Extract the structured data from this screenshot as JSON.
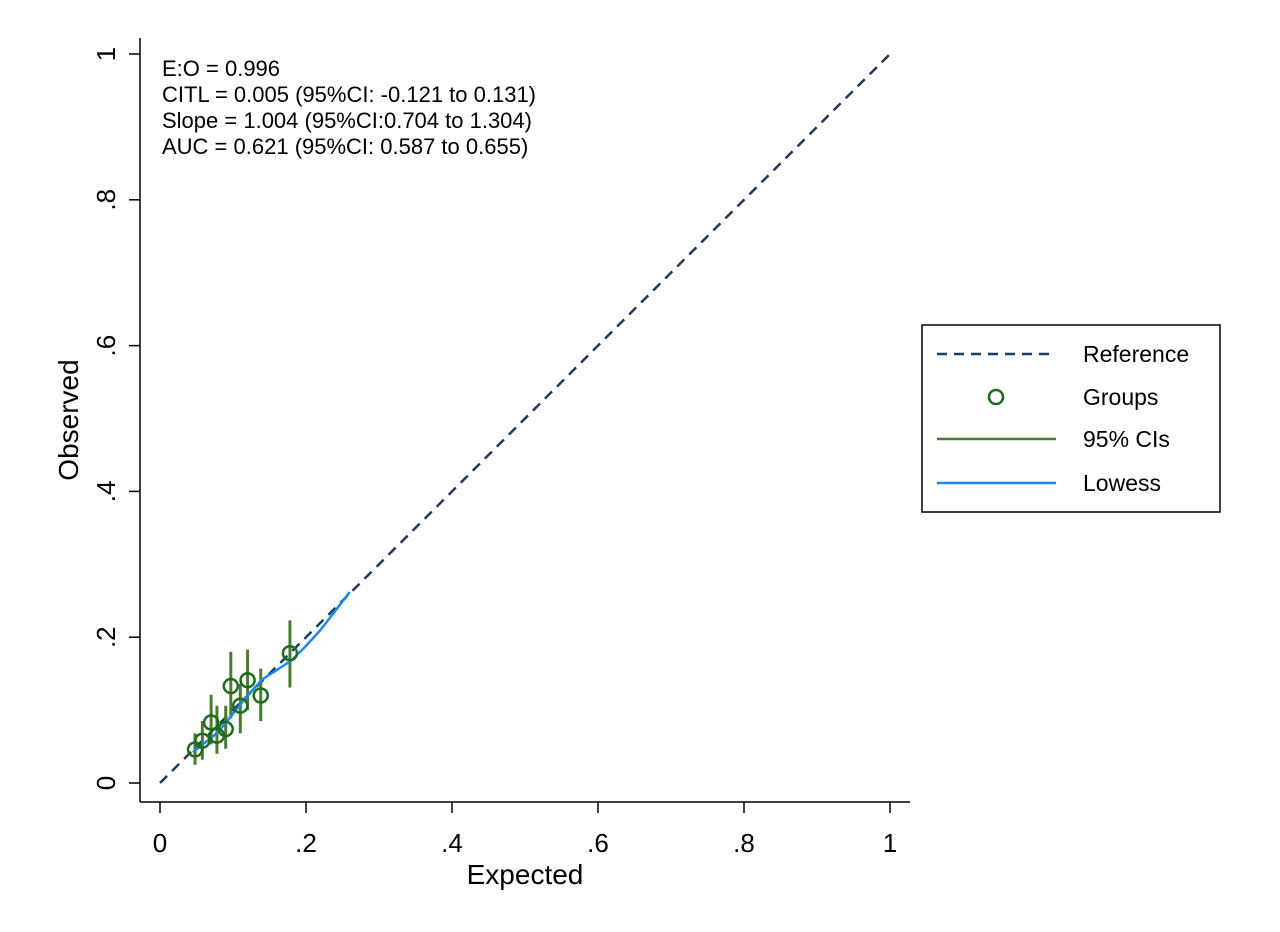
{
  "chart_data": {
    "type": "scatter",
    "xlabel": "Expected",
    "ylabel": "Observed",
    "xlim": [
      0,
      1
    ],
    "ylim": [
      0,
      1
    ],
    "x_ticks": [
      {
        "value": 0,
        "label": "0"
      },
      {
        "value": 0.2,
        "label": ".2"
      },
      {
        "value": 0.4,
        "label": ".4"
      },
      {
        "value": 0.6,
        "label": ".6"
      },
      {
        "value": 0.8,
        "label": ".8"
      },
      {
        "value": 1,
        "label": "1"
      }
    ],
    "y_ticks": [
      {
        "value": 0,
        "label": "0"
      },
      {
        "value": 0.2,
        "label": ".2"
      },
      {
        "value": 0.4,
        "label": ".4"
      },
      {
        "value": 0.6,
        "label": ".6"
      },
      {
        "value": 0.8,
        "label": ".8"
      },
      {
        "value": 1,
        "label": "1"
      }
    ],
    "grid": false,
    "legend_position": "right",
    "annotations": [
      "E:O = 0.996",
      "CITL = 0.005 (95%CI: -0.121 to 0.131)",
      "Slope = 1.004 (95%CI:0.704 to 1.304)",
      "AUC = 0.621 (95%CI: 0.587 to 0.655)"
    ],
    "series": [
      {
        "name": "Reference",
        "kind": "line",
        "style": "dashed",
        "color": "#1f3b5c",
        "x": [
          0,
          1
        ],
        "y": [
          0,
          1
        ]
      },
      {
        "name": "Groups",
        "kind": "scatter",
        "marker": "hollow-circle",
        "color": "#1e6b1e",
        "x": [
          0.048,
          0.058,
          0.07,
          0.078,
          0.09,
          0.097,
          0.11,
          0.12,
          0.138,
          0.178
        ],
        "y": [
          0.046,
          0.058,
          0.083,
          0.065,
          0.074,
          0.133,
          0.106,
          0.141,
          0.12,
          0.178
        ]
      },
      {
        "name": "95% CIs",
        "kind": "errorbar",
        "color": "#4a7a2e",
        "x": [
          0.048,
          0.058,
          0.07,
          0.078,
          0.09,
          0.097,
          0.11,
          0.12,
          0.138,
          0.178
        ],
        "lower": [
          0.025,
          0.032,
          0.053,
          0.04,
          0.047,
          0.089,
          0.068,
          0.1,
          0.085,
          0.131
        ],
        "upper": [
          0.068,
          0.085,
          0.121,
          0.106,
          0.106,
          0.18,
          0.136,
          0.183,
          0.157,
          0.223
        ]
      },
      {
        "name": "Lowess",
        "kind": "line",
        "style": "solid",
        "color": "#1a8ae8",
        "x": [
          0.045,
          0.06,
          0.075,
          0.09,
          0.1,
          0.12,
          0.14,
          0.16,
          0.18,
          0.2,
          0.22,
          0.26
        ],
        "y": [
          0.042,
          0.054,
          0.066,
          0.082,
          0.095,
          0.12,
          0.142,
          0.155,
          0.168,
          0.188,
          0.21,
          0.262
        ]
      }
    ]
  }
}
